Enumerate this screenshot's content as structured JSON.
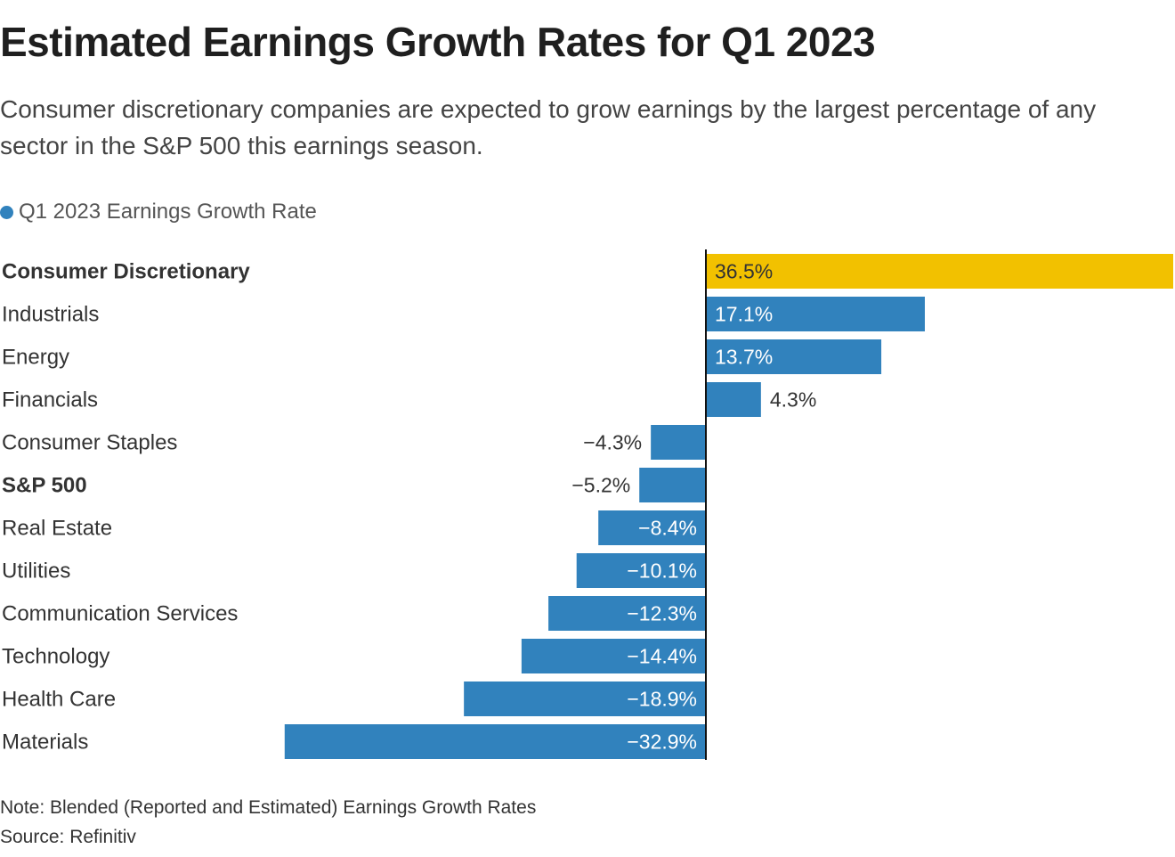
{
  "chart_data": {
    "type": "bar",
    "orientation": "horizontal",
    "title": "Estimated Earnings Growth Rates for Q1 2023",
    "subtitle": "Consumer discretionary companies are expected to grow earnings by the largest percentage of any sector in the S&P 500 this earnings season.",
    "legend": {
      "label": "Q1 2023 Earnings Growth Rate",
      "color": "#3182bd",
      "placement": "top-left"
    },
    "categories": [
      "Consumer Discretionary",
      "Industrials",
      "Energy",
      "Financials",
      "Consumer Staples",
      "S&P 500",
      "Real Estate",
      "Utilities",
      "Communication Services",
      "Technology",
      "Health Care",
      "Materials"
    ],
    "values": [
      36.5,
      17.1,
      13.7,
      4.3,
      -4.3,
      -5.2,
      -8.4,
      -10.1,
      -12.3,
      -14.4,
      -18.9,
      -32.9
    ],
    "value_labels": [
      "36.5%",
      "17.1%",
      "13.7%",
      "4.3%",
      "−4.3%",
      "−5.2%",
      "−8.4%",
      "−10.1%",
      "−12.3%",
      "−14.4%",
      "−18.9%",
      "−32.9%"
    ],
    "bold_categories": [
      "Consumer Discretionary",
      "S&P 500"
    ],
    "highlight_category": "Consumer Discretionary",
    "colors": {
      "bar": "#3182bd",
      "highlight": "#f2c100",
      "axis": "#111111",
      "label_inside": "#ffffff",
      "label_inside_highlight": "#333333",
      "label_outside": "#333333",
      "category_text": "#333333"
    },
    "xlim": [
      -36.5,
      36.5
    ],
    "xlabel": "",
    "ylabel": "",
    "grid": false
  },
  "footer": {
    "note": "Note: Blended (Reported and Estimated) Earnings Growth Rates",
    "source": "Source: Refinitiv"
  }
}
